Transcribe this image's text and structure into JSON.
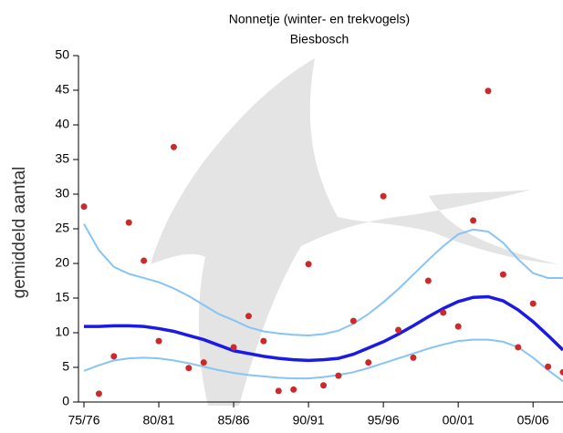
{
  "chart_data": {
    "type": "line",
    "title": "Nonnetje (winter- en trekvogels)",
    "subtitle": "Biesbosch",
    "y_label": "gemiddeld aantal",
    "categories": [
      "75/76",
      null,
      null,
      null,
      null,
      "80/81",
      null,
      null,
      null,
      null,
      "85/86",
      null,
      null,
      null,
      null,
      "90/91",
      null,
      null,
      null,
      null,
      "95/96",
      null,
      null,
      null,
      null,
      "00/01",
      null,
      null,
      null,
      null,
      "05/06",
      null,
      null
    ],
    "ylim": [
      0,
      50
    ],
    "yticks": [
      0,
      5,
      10,
      15,
      20,
      25,
      30,
      35,
      40,
      45,
      50
    ],
    "series": [
      {
        "style": "line",
        "color": "#87c4f5",
        "width": 2,
        "values": [
          25.7,
          21.9,
          19.5,
          18.5,
          17.9,
          17.3,
          16.4,
          15.3,
          14.0,
          12.7,
          11.8,
          10.8,
          10.2,
          9.9,
          9.7,
          9.6,
          9.8,
          10.3,
          11.3,
          12.7,
          14.4,
          16.3,
          18.4,
          20.5,
          22.5,
          24.2,
          24.9,
          24.6,
          23.0,
          20.6,
          18.6,
          17.9,
          17.9
        ]
      },
      {
        "style": "line",
        "color": "#87c4f5",
        "width": 2,
        "values": [
          4.5,
          5.3,
          6.0,
          6.3,
          6.4,
          6.3,
          6.0,
          5.6,
          5.1,
          4.6,
          4.2,
          3.9,
          3.7,
          3.5,
          3.4,
          3.4,
          3.6,
          3.9,
          4.3,
          4.9,
          5.6,
          6.3,
          7.0,
          7.7,
          8.3,
          8.8,
          9.0,
          9.0,
          8.7,
          7.9,
          6.4,
          4.6,
          3.0
        ]
      },
      {
        "style": "line",
        "color": "#1a1ae6",
        "width": 3.5,
        "values": [
          10.9,
          10.9,
          11.0,
          11.0,
          10.9,
          10.6,
          10.2,
          9.6,
          9.0,
          8.2,
          7.4,
          7.0,
          6.6,
          6.3,
          6.1,
          6.0,
          6.1,
          6.3,
          6.9,
          7.8,
          8.7,
          9.8,
          11.0,
          12.3,
          13.5,
          14.5,
          15.1,
          15.2,
          14.6,
          13.3,
          11.6,
          9.6,
          7.5
        ]
      },
      {
        "style": "points",
        "color": "#cc2a2a",
        "values": [
          28.2,
          1.2,
          6.6,
          25.9,
          20.4,
          8.8,
          36.8,
          4.9,
          5.7,
          null,
          7.9,
          12.4,
          8.8,
          1.6,
          1.8,
          19.9,
          2.4,
          3.8,
          11.7,
          5.7,
          29.7,
          10.4,
          6.4,
          17.5,
          12.9,
          10.9,
          26.2,
          44.9,
          18.4,
          7.9,
          14.2,
          5.1,
          4.3
        ]
      }
    ]
  }
}
